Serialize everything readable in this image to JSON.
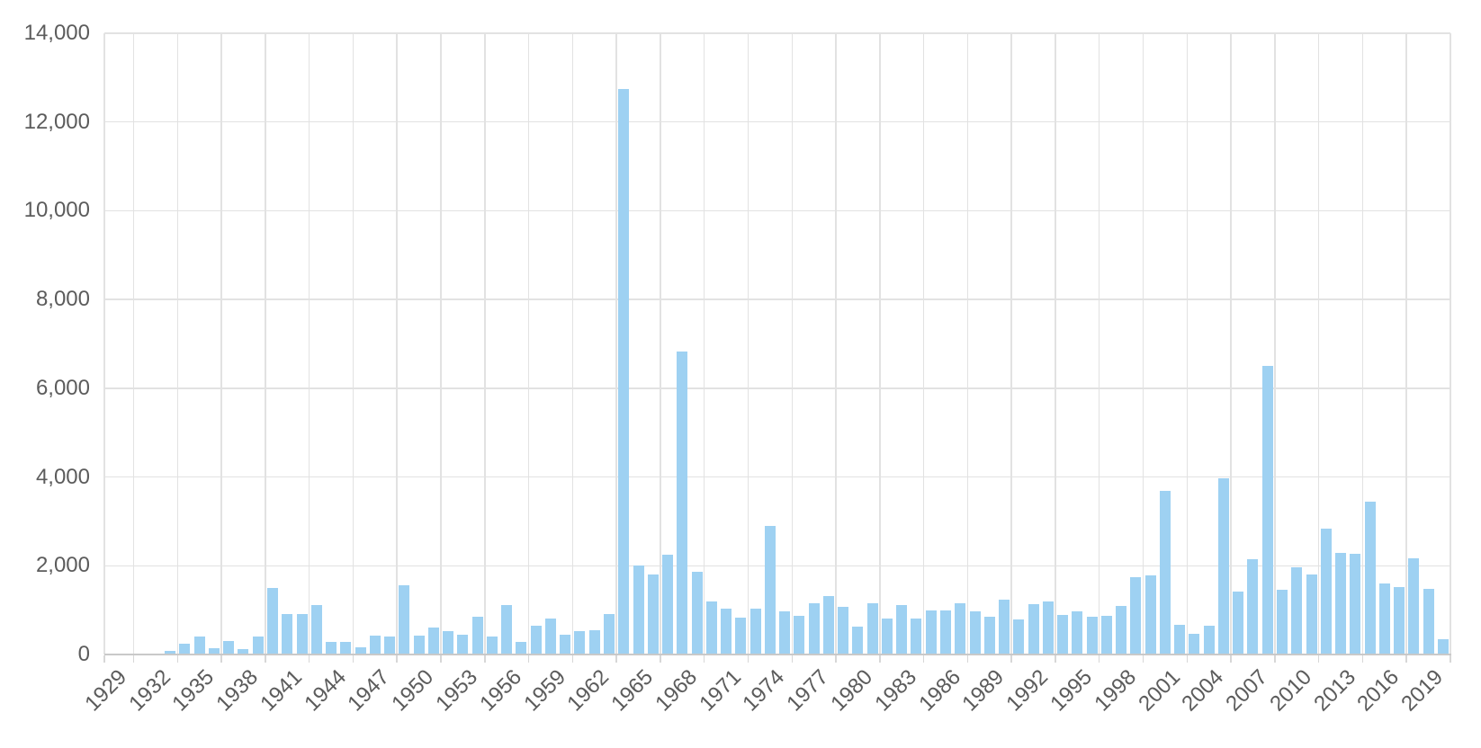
{
  "chart_data": {
    "type": "bar",
    "title": "",
    "xlabel": "",
    "ylabel": "",
    "ylim": [
      0,
      14000
    ],
    "ytick_interval": 2000,
    "ytick_values": [
      0,
      2000,
      4000,
      6000,
      8000,
      10000,
      12000,
      14000
    ],
    "ytick_labels": [
      "0",
      "2,000",
      "4,000",
      "6,000",
      "8,000",
      "10,000",
      "12,000",
      "14,000"
    ],
    "xtick_labels": [
      "1929",
      "1932",
      "1935",
      "1938",
      "1941",
      "1944",
      "1947",
      "1950",
      "1953",
      "1956",
      "1959",
      "1962",
      "1965",
      "1968",
      "1971",
      "1974",
      "1977",
      "1980",
      "1983",
      "1986",
      "1989",
      "1992",
      "1995",
      "1998",
      "2001",
      "2004",
      "2007",
      "2010",
      "2013",
      "2016",
      "2019"
    ],
    "grid": true,
    "legend_position": "none",
    "years": [
      1929,
      1930,
      1931,
      1932,
      1933,
      1934,
      1935,
      1936,
      1937,
      1938,
      1939,
      1940,
      1941,
      1942,
      1943,
      1944,
      1945,
      1946,
      1947,
      1948,
      1949,
      1950,
      1951,
      1952,
      1953,
      1954,
      1955,
      1956,
      1957,
      1958,
      1959,
      1960,
      1961,
      1962,
      1963,
      1964,
      1965,
      1966,
      1967,
      1968,
      1969,
      1970,
      1971,
      1972,
      1973,
      1974,
      1975,
      1976,
      1977,
      1978,
      1979,
      1980,
      1981,
      1982,
      1983,
      1984,
      1985,
      1986,
      1987,
      1988,
      1989,
      1990,
      1991,
      1992,
      1993,
      1994,
      1995,
      1996,
      1997,
      1998,
      1999,
      2000,
      2001,
      2002,
      2003,
      2004,
      2005,
      2006,
      2007,
      2008,
      2009,
      2010,
      2011,
      2012,
      2013,
      2014,
      2015,
      2016,
      2017,
      2018,
      2019,
      2020
    ],
    "values": [
      25,
      20,
      30,
      10,
      90,
      245,
      405,
      140,
      310,
      120,
      400,
      1500,
      905,
      905,
      1120,
      285,
      275,
      160,
      430,
      400,
      1570,
      435,
      600,
      535,
      445,
      850,
      400,
      1110,
      275,
      650,
      810,
      445,
      535,
      555,
      915,
      12740,
      2000,
      1805,
      2250,
      6830,
      1870,
      1190,
      1025,
      840,
      1040,
      2900,
      975,
      865,
      1165,
      1310,
      1075,
      635,
      1155,
      820,
      1110,
      810,
      995,
      985,
      1155,
      975,
      850,
      1230,
      790,
      1135,
      1200,
      885,
      965,
      845,
      870,
      1095,
      1745,
      1785,
      3680,
      660,
      470,
      655,
      3970,
      1425,
      2155,
      6500,
      1460,
      1970,
      1805,
      2840,
      2285,
      2265,
      3440,
      1600,
      1510,
      2175,
      1475,
      340
    ],
    "colors": {
      "bar_fill": "#9ed1f2",
      "gridline": "#e2e2e2",
      "axis_baseline": "#c9c9c9",
      "tick": "#d7d7d7",
      "label_text": "#5c5c5c",
      "background": "#ffffff"
    }
  }
}
